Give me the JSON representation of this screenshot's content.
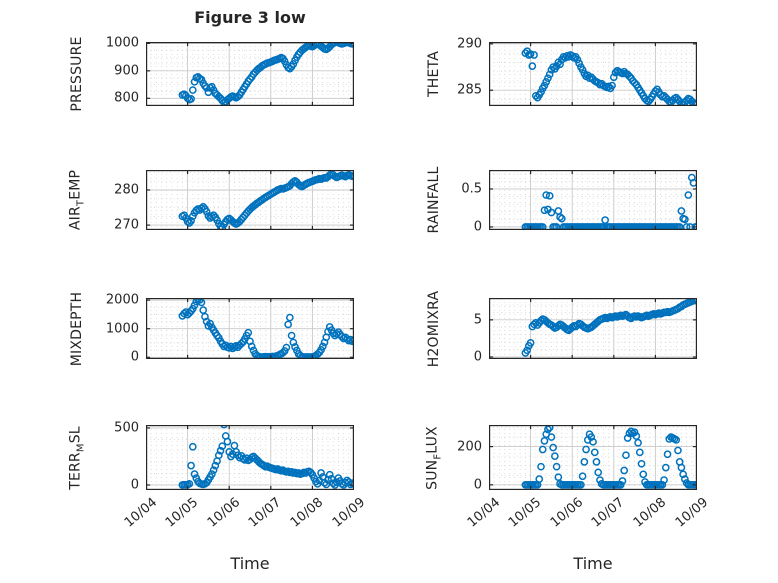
{
  "figure": {
    "title": "Figure 3 low",
    "xlabel": "Time",
    "background": "#ffffff",
    "marker_color": "#0072BD",
    "axis_color": "#262626",
    "major_grid_color": "#c9c9c9",
    "minor_grid_color": "#d6d6d6"
  },
  "time_axis": {
    "xlim_days": [
      0,
      5
    ],
    "tick_days": [
      0,
      1,
      2,
      3,
      4,
      5
    ],
    "tick_labels": [
      "10/04",
      "10/05",
      "10/06",
      "10/07",
      "10/08",
      "10/09"
    ],
    "minor_x_step_days": 0.125
  },
  "chart_data": [
    {
      "type": "scatter",
      "name": "PRESSURE",
      "label_parts": [
        {
          "text": "PRESSURE"
        }
      ],
      "yticks": [
        800,
        900,
        1000
      ],
      "ytick_labels": [
        "800",
        "900",
        "1000"
      ],
      "ylim": [
        772,
        1005
      ],
      "minor_y_step": 25,
      "x_start_days": 0.875,
      "x_step_days": 0.0416667,
      "y": [
        812,
        815,
        810,
        800,
        795,
        798,
        830,
        860,
        875,
        878,
        872,
        868,
        855,
        845,
        838,
        822,
        838,
        842,
        830,
        818,
        812,
        806,
        800,
        792,
        785,
        788,
        795,
        800,
        805,
        808,
        805,
        802,
        806,
        812,
        822,
        832,
        842,
        852,
        862,
        870,
        878,
        888,
        895,
        902,
        908,
        912,
        918,
        922,
        925,
        928,
        930,
        932,
        935,
        938,
        940,
        942,
        945,
        948,
        945,
        935,
        922,
        912,
        908,
        915,
        925,
        938,
        950,
        960,
        968,
        975,
        980,
        985,
        990,
        992,
        990,
        988,
        992,
        996,
        998,
        995,
        990,
        985,
        980,
        978,
        982,
        988,
        995,
        1000,
        1003,
        1005,
        1003,
        1000,
        998,
        1000,
        1002,
        1004,
        1003,
        1000,
        998,
        1000
      ]
    },
    {
      "type": "scatter",
      "name": "THETA",
      "label_parts": [
        {
          "text": "THETA"
        }
      ],
      "yticks": [
        285,
        290
      ],
      "ytick_labels": [
        "285",
        "290"
      ],
      "ylim": [
        283.3,
        290.2
      ],
      "minor_y_step": 1,
      "x_start_days": 0.875,
      "x_step_days": 0.0416667,
      "y": [
        289.0,
        289.2,
        288.8,
        288.9,
        287.6,
        288.8,
        284.4,
        284.2,
        284.5,
        284.8,
        285.2,
        285.5,
        285.9,
        286.3,
        286.7,
        287.2,
        287.5,
        287.3,
        287.6,
        288.0,
        287.8,
        288.3,
        288.6,
        288.5,
        288.7,
        288.6,
        288.8,
        288.7,
        288.5,
        288.6,
        288.3,
        287.9,
        287.5,
        287.2,
        286.8,
        286.5,
        286.6,
        286.3,
        286.4,
        286.2,
        286.0,
        285.9,
        285.8,
        285.6,
        285.7,
        285.5,
        285.4,
        285.3,
        285.4,
        285.2,
        285.5,
        286.4,
        286.9,
        287.1,
        287.0,
        286.9,
        286.8,
        287.0,
        286.8,
        286.7,
        286.5,
        286.3,
        286.0,
        285.8,
        285.6,
        285.3,
        285.0,
        284.7,
        284.4,
        284.1,
        283.9,
        283.8,
        284.0,
        284.3,
        284.6,
        284.9,
        285.1,
        284.8,
        284.5,
        284.3,
        284.4,
        284.2,
        284.0,
        283.8,
        283.7,
        283.9,
        284.1,
        284.2,
        284.0,
        283.8,
        283.6,
        283.5,
        283.7,
        283.9,
        284.1,
        284.0,
        283.8,
        283.6,
        283.5,
        283.6
      ]
    },
    {
      "type": "scatter",
      "name": "AIR_TEMP",
      "label_parts": [
        {
          "text": "AIR"
        },
        {
          "text": "T",
          "sub": true
        },
        {
          "text": "EMP"
        }
      ],
      "yticks": [
        270,
        280
      ],
      "ytick_labels": [
        "270",
        "280"
      ],
      "ylim": [
        268.6,
        285.7
      ],
      "minor_y_step": 2.5,
      "x_start_days": 0.875,
      "x_step_days": 0.0416667,
      "y": [
        272.5,
        272.8,
        272.0,
        271.0,
        270.6,
        271.2,
        272.5,
        273.5,
        274.2,
        274.6,
        274.3,
        274.8,
        275.2,
        274.6,
        273.8,
        272.6,
        272.0,
        272.4,
        272.8,
        272.2,
        271.4,
        270.4,
        269.6,
        269.3,
        270.2,
        271.0,
        271.6,
        271.9,
        271.5,
        271.0,
        270.6,
        270.3,
        270.6,
        271.0,
        271.6,
        272.2,
        272.8,
        273.4,
        274.0,
        274.5,
        275.0,
        275.4,
        275.8,
        276.2,
        276.5,
        276.9,
        277.2,
        277.6,
        277.9,
        278.2,
        278.5,
        278.8,
        279.1,
        279.4,
        279.7,
        280.0,
        280.2,
        280.4,
        280.3,
        280.5,
        280.7,
        280.9,
        281.2,
        281.8,
        282.3,
        282.6,
        282.2,
        281.6,
        281.2,
        281.0,
        281.3,
        281.6,
        281.9,
        282.1,
        282.3,
        282.5,
        282.7,
        282.9,
        283.0,
        283.2,
        283.1,
        283.3,
        283.5,
        283.4,
        283.8,
        284.2,
        284.6,
        284.3,
        283.9,
        283.6,
        283.8,
        284.0,
        284.2,
        284.0,
        283.8,
        284.1,
        284.3,
        284.1,
        283.9,
        284.0
      ]
    },
    {
      "type": "scatter",
      "name": "RAINFALL",
      "label_parts": [
        {
          "text": "RAINFALL"
        }
      ],
      "yticks": [
        0,
        0.5
      ],
      "ytick_labels": [
        "0",
        "0.5"
      ],
      "ylim": [
        -0.04,
        0.75
      ],
      "minor_y_step": 0.1,
      "x_start_days": 0.875,
      "x_step_days": 0.0416667,
      "y": [
        0,
        0,
        0,
        0,
        0,
        0,
        0,
        0,
        0,
        0,
        0,
        0.22,
        0.42,
        0.23,
        0.41,
        0.19,
        0,
        0,
        0,
        0.21,
        0.13,
        0.11,
        0,
        0,
        0,
        0,
        0,
        0,
        0,
        0,
        0,
        0,
        0,
        0,
        0,
        0,
        0,
        0,
        0,
        0,
        0,
        0,
        0,
        0,
        0,
        0,
        0.09,
        0,
        0,
        0,
        0,
        0,
        0,
        0,
        0,
        0,
        0,
        0,
        0,
        0,
        0,
        0,
        0,
        0,
        0,
        0,
        0,
        0,
        0,
        0,
        0,
        0,
        0,
        0,
        0,
        0,
        0,
        0,
        0,
        0,
        0,
        0,
        0,
        0,
        0,
        0,
        0,
        0,
        0,
        0,
        0.21,
        0.11,
        0.1,
        0,
        0.42,
        0,
        0.65,
        0.58,
        0,
        0
      ]
    },
    {
      "type": "scatter",
      "name": "MIXDEPTH",
      "label_parts": [
        {
          "text": "MIXDEPTH"
        }
      ],
      "yticks": [
        0,
        1000,
        2000
      ],
      "ytick_labels": [
        "0",
        "1000",
        "2000"
      ],
      "ylim": [
        -60,
        2075
      ],
      "minor_y_step": 250,
      "x_start_days": 0.875,
      "x_step_days": 0.0416667,
      "y": [
        1450,
        1530,
        1580,
        1490,
        1550,
        1620,
        1700,
        1820,
        1950,
        2040,
        2010,
        1920,
        1650,
        1420,
        1250,
        1100,
        1180,
        1050,
        950,
        850,
        760,
        680,
        560,
        470,
        380,
        420,
        350,
        330,
        380,
        310,
        360,
        400,
        350,
        420,
        480,
        540,
        640,
        760,
        860,
        560,
        380,
        240,
        120,
        60,
        30,
        10,
        5,
        15,
        25,
        10,
        20,
        15,
        30,
        20,
        40,
        60,
        90,
        120,
        160,
        220,
        340,
        1150,
        1390,
        760,
        520,
        360,
        240,
        120,
        60,
        20,
        10,
        5,
        15,
        8,
        12,
        10,
        25,
        60,
        110,
        170,
        260,
        380,
        520,
        700,
        900,
        1060,
        950,
        840,
        760,
        820,
        880,
        800,
        720,
        660,
        700,
        640,
        580,
        620,
        560,
        600
      ]
    },
    {
      "type": "scatter",
      "name": "H2OMIXRA",
      "label_parts": [
        {
          "text": "H2OMIXRA"
        }
      ],
      "yticks": [
        0,
        5
      ],
      "ytick_labels": [
        "0",
        "5"
      ],
      "ylim": [
        -0.27,
        7.94
      ],
      "minor_y_step": 1,
      "x_start_days": 0.875,
      "x_step_days": 0.0416667,
      "y": [
        0.55,
        0.9,
        1.5,
        1.9,
        4.1,
        4.4,
        4.6,
        4.3,
        4.6,
        4.9,
        5.1,
        5.0,
        4.8,
        4.6,
        4.4,
        4.3,
        4.1,
        3.9,
        4.0,
        4.2,
        4.4,
        4.3,
        4.1,
        3.9,
        3.7,
        3.6,
        3.8,
        4.0,
        4.2,
        4.1,
        4.3,
        4.5,
        4.4,
        4.2,
        4.0,
        3.9,
        3.8,
        3.9,
        4.0,
        4.2,
        4.4,
        4.6,
        4.8,
        5.0,
        5.1,
        5.2,
        5.3,
        5.2,
        5.3,
        5.4,
        5.3,
        5.4,
        5.5,
        5.4,
        5.5,
        5.6,
        5.5,
        5.6,
        5.7,
        5.5,
        5.3,
        5.2,
        5.4,
        5.5,
        5.4,
        5.5,
        5.4,
        5.3,
        5.4,
        5.5,
        5.6,
        5.5,
        5.6,
        5.7,
        5.8,
        5.7,
        5.8,
        5.9,
        5.8,
        5.9,
        6.0,
        6.0,
        6.1,
        6.0,
        6.1,
        6.2,
        6.3,
        6.4,
        6.5,
        6.7,
        6.8,
        7.0,
        7.1,
        7.2,
        7.3,
        7.4,
        7.5,
        7.6,
        7.6,
        7.7
      ]
    },
    {
      "type": "scatter",
      "name": "TERR_MSL",
      "label_parts": [
        {
          "text": "TERR"
        },
        {
          "text": "M",
          "sub": true
        },
        {
          "text": "SL"
        }
      ],
      "yticks": [
        0,
        500
      ],
      "ytick_labels": [
        "0",
        "500"
      ],
      "ylim": [
        -44,
        526
      ],
      "minor_y_step": 100,
      "x_start_days": 0.875,
      "x_step_days": 0.0416667,
      "y": [
        0,
        2,
        1,
        3,
        10,
        170,
        335,
        95,
        60,
        30,
        15,
        8,
        5,
        10,
        20,
        45,
        70,
        95,
        130,
        170,
        210,
        260,
        300,
        340,
        530,
        430,
        380,
        290,
        250,
        270,
        345,
        290,
        260,
        240,
        255,
        230,
        220,
        235,
        215,
        225,
        240,
        250,
        235,
        220,
        205,
        190,
        180,
        170,
        160,
        165,
        155,
        150,
        145,
        140,
        135,
        140,
        130,
        125,
        130,
        120,
        115,
        120,
        110,
        115,
        105,
        110,
        100,
        105,
        95,
        100,
        110,
        105,
        115,
        120,
        110,
        90,
        60,
        30,
        10,
        40,
        105,
        70,
        20,
        5,
        45,
        90,
        55,
        15,
        0,
        25,
        60,
        35,
        10,
        0,
        20,
        40,
        25,
        5,
        15,
        10
      ]
    },
    {
      "type": "scatter",
      "name": "SUN_FLUX",
      "label_parts": [
        {
          "text": "SUN"
        },
        {
          "text": "F",
          "sub": true
        },
        {
          "text": "LUX"
        }
      ],
      "yticks": [
        0,
        200
      ],
      "ytick_labels": [
        "0",
        "200"
      ],
      "ylim": [
        -27,
        313
      ],
      "minor_y_step": 50,
      "x_start_days": 0.875,
      "x_step_days": 0.0416667,
      "y": [
        0,
        0,
        0,
        0,
        0,
        0,
        0,
        0,
        30,
        95,
        185,
        230,
        265,
        290,
        300,
        250,
        195,
        150,
        95,
        40,
        5,
        0,
        0,
        0,
        0,
        0,
        0,
        0,
        0,
        0,
        0,
        0,
        0,
        45,
        120,
        185,
        235,
        265,
        250,
        225,
        170,
        120,
        65,
        25,
        5,
        0,
        0,
        0,
        0,
        0,
        0,
        0,
        0,
        0,
        0,
        0,
        20,
        75,
        155,
        245,
        270,
        280,
        270,
        275,
        255,
        220,
        170,
        110,
        55,
        15,
        0,
        0,
        0,
        0,
        0,
        0,
        0,
        0,
        0,
        0,
        25,
        90,
        160,
        240,
        250,
        245,
        240,
        235,
        180,
        120,
        90,
        55,
        30,
        10,
        0,
        0,
        0,
        0,
        0,
        0
      ]
    }
  ]
}
